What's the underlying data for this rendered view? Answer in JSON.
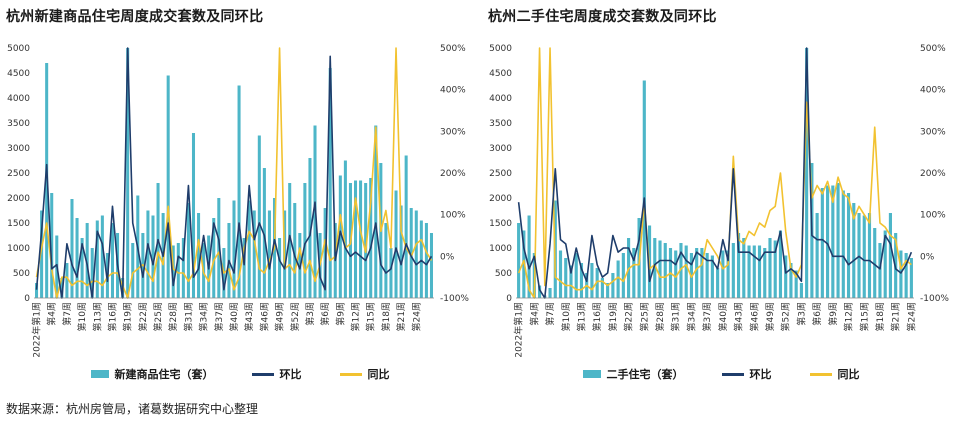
{
  "source_note": "数据来源：杭州房管局，诸葛数据研究中心整理",
  "colors": {
    "bar": "#4db6c8",
    "mom": "#1f3d6b",
    "yoy": "#f2c230"
  },
  "chart_data": [
    {
      "type": "bar",
      "title": "杭州新建商品住宅周度成交套数及同环比",
      "legend": {
        "bar": "新建商品住宅（套）",
        "mom": "环比",
        "yoy": "同比"
      },
      "legend_position": "bottom",
      "ylim_left": [
        0,
        5000
      ],
      "y_ticks_left": [
        0,
        500,
        1000,
        1500,
        2000,
        2500,
        3000,
        3500,
        4000,
        4500,
        5000
      ],
      "y_tick_labels_left": [
        "0",
        "500",
        "1000",
        "1500",
        "2000",
        "2500",
        "3000",
        "3500",
        "4000",
        "4500",
        "5000"
      ],
      "ylim_right": [
        -100,
        500
      ],
      "y_ticks_right": [
        -100,
        0,
        100,
        200,
        300,
        400,
        500
      ],
      "y_tick_labels_right": [
        "-100%",
        "0%",
        "100%",
        "200%",
        "300%",
        "400%",
        "500%"
      ],
      "x_tick_labels": [
        "2022年第1周",
        "第4周",
        "第7周",
        "第10周",
        "第13周",
        "第16周",
        "第19周",
        "第22周",
        "第25周",
        "第28周",
        "第31周",
        "第34周",
        "第37周",
        "第40周",
        "第43周",
        "第46周",
        "第49周",
        "第52周",
        "第3周",
        "第6周",
        "第9周",
        "第12周",
        "第15周",
        "第18周",
        "第21周",
        "第24周"
      ],
      "grid": false,
      "bars": [
        300,
        1750,
        4700,
        2100,
        1250,
        400,
        700,
        1980,
        1600,
        1200,
        1500,
        1000,
        1550,
        1650,
        900,
        1500,
        1300,
        400,
        5000,
        1100,
        2050,
        1300,
        1750,
        1650,
        2300,
        1700,
        4450,
        1050,
        1100,
        1200,
        1900,
        3300,
        1700,
        1100,
        1250,
        1600,
        2000,
        1000,
        1500,
        1950,
        4250,
        1200,
        1950,
        1750,
        3250,
        2600,
        1750,
        2000,
        1200,
        1750,
        2300,
        1900,
        1300,
        2300,
        2800,
        3450,
        1300,
        1800,
        4600,
        1500,
        2450,
        2750,
        2300,
        2350,
        2350,
        2300,
        2400,
        3450,
        2700,
        1500,
        1000,
        2150,
        1850,
        2850,
        1800,
        1750,
        1550,
        1500,
        1300
      ],
      "mom": [
        -80,
        60,
        220,
        -30,
        -20,
        -100,
        30,
        -20,
        -50,
        30,
        -20,
        -100,
        60,
        30,
        -60,
        120,
        -20,
        -100,
        500,
        80,
        20,
        -50,
        30,
        -20,
        40,
        0,
        80,
        -70,
        0,
        -10,
        170,
        -50,
        -30,
        50,
        -30,
        80,
        40,
        -80,
        -10,
        -40,
        80,
        -20,
        170,
        40,
        80,
        50,
        -30,
        40,
        -10,
        -30,
        50,
        0,
        -30,
        30,
        50,
        130,
        -50,
        -80,
        480,
        -10,
        60,
        20,
        0,
        10,
        0,
        -10,
        20,
        80,
        -20,
        -40,
        -30,
        20,
        -20,
        30,
        0,
        -20,
        -10,
        -20,
        0
      ],
      "yoy": [
        -50,
        20,
        80,
        -30,
        -100,
        -50,
        -50,
        -70,
        -60,
        -60,
        -70,
        -60,
        -60,
        -70,
        -50,
        -40,
        -40,
        -70,
        -100,
        -40,
        -30,
        -20,
        -40,
        -60,
        10,
        -20,
        120,
        -30,
        -40,
        -40,
        -60,
        -40,
        40,
        -40,
        -60,
        -10,
        10,
        -40,
        -30,
        -80,
        -50,
        20,
        60,
        40,
        -30,
        -40,
        -10,
        20,
        500,
        -30,
        -20,
        -40,
        20,
        -40,
        -10,
        -60,
        -20,
        40,
        -10,
        0,
        100,
        20,
        30,
        140,
        60,
        10,
        130,
        310,
        60,
        110,
        20,
        500,
        60,
        20,
        0,
        30,
        40,
        10,
        -10
      ]
    },
    {
      "type": "bar",
      "title": "杭州二手住宅周度成交套数及同环比",
      "legend": {
        "bar": "二手住宅（套）",
        "mom": "环比",
        "yoy": "同比"
      },
      "legend_position": "bottom",
      "ylim_left": [
        0,
        5000
      ],
      "y_ticks_left": [
        0,
        500,
        1000,
        1500,
        2000,
        2500,
        3000,
        3500,
        4000,
        4500,
        5000
      ],
      "y_tick_labels_left": [
        "0",
        "500",
        "1000",
        "1500",
        "2000",
        "2500",
        "3000",
        "3500",
        "4000",
        "4500",
        "5000"
      ],
      "ylim_right": [
        -100,
        500
      ],
      "y_ticks_right": [
        -100,
        0,
        100,
        200,
        300,
        400,
        500
      ],
      "y_tick_labels_right": [
        "-100%",
        "0%",
        "100%",
        "200%",
        "300%",
        "400%",
        "500%"
      ],
      "x_tick_labels": [
        "2022年第1周",
        "第4周",
        "第7周",
        "第10周",
        "第13周",
        "第16周",
        "第19周",
        "第22周",
        "第25周",
        "第28周",
        "第31周",
        "第34周",
        "第37周",
        "第40周",
        "第43周",
        "第46周",
        "第49周",
        "第52周",
        "第3周",
        "第6周",
        "第9周",
        "第12周",
        "第15周",
        "第18周",
        "第21周",
        "第24周"
      ],
      "grid": false,
      "bars": [
        1500,
        1350,
        1650,
        900,
        250,
        50,
        200,
        1950,
        950,
        800,
        650,
        900,
        700,
        500,
        700,
        600,
        400,
        300,
        500,
        750,
        900,
        1200,
        1000,
        1600,
        4350,
        1450,
        1200,
        1150,
        1100,
        1000,
        950,
        1100,
        1050,
        900,
        1000,
        1000,
        900,
        850,
        600,
        950,
        950,
        1100,
        1300,
        1200,
        1050,
        1050,
        1050,
        1000,
        1200,
        1150,
        1350,
        850,
        700,
        550,
        300,
        5000,
        2700,
        1700,
        2200,
        2250,
        2250,
        2300,
        2150,
        2100,
        1900,
        1700,
        1650,
        1700,
        1400,
        1100,
        1350,
        1700,
        1300,
        950,
        900,
        800
      ],
      "mom": [
        130,
        20,
        -30,
        0,
        -80,
        -100,
        30,
        210,
        40,
        30,
        -40,
        20,
        -30,
        -60,
        50,
        -20,
        -50,
        -40,
        50,
        10,
        20,
        20,
        -10,
        40,
        140,
        -60,
        -20,
        -10,
        -10,
        -10,
        -20,
        10,
        -10,
        -20,
        10,
        0,
        -10,
        -10,
        -30,
        40,
        -10,
        210,
        10,
        10,
        10,
        0,
        -10,
        10,
        10,
        10,
        60,
        -40,
        -30,
        -40,
        -60,
        500,
        50,
        40,
        40,
        30,
        0,
        0,
        0,
        -20,
        -10,
        0,
        -10,
        -10,
        -20,
        -30,
        50,
        30,
        -30,
        -40,
        -20,
        10
      ],
      "yoy": [
        -40,
        -10,
        -80,
        -100,
        500,
        -70,
        500,
        -50,
        -60,
        -70,
        -70,
        -80,
        -80,
        -70,
        -80,
        -60,
        -60,
        -70,
        -60,
        -50,
        -60,
        -30,
        -20,
        -20,
        130,
        -30,
        -20,
        -50,
        -50,
        -40,
        -50,
        -30,
        -20,
        -50,
        -30,
        -20,
        40,
        20,
        0,
        -30,
        -20,
        240,
        40,
        30,
        60,
        50,
        80,
        70,
        110,
        120,
        200,
        60,
        -30,
        -50,
        -20,
        370,
        140,
        170,
        150,
        180,
        130,
        190,
        150,
        140,
        90,
        120,
        100,
        80,
        310,
        80,
        70,
        50,
        40,
        -30,
        -10,
        -20
      ]
    }
  ]
}
